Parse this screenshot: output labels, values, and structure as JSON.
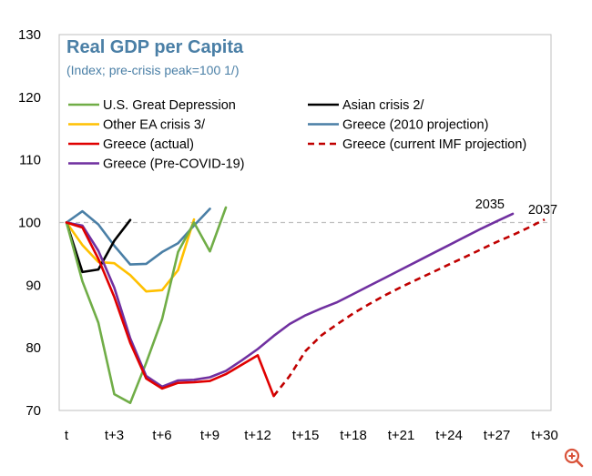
{
  "chart_data": {
    "type": "line",
    "title": "Real GDP per Capita",
    "subtitle": "(Index; pre-crisis peak=100 1/)",
    "ylim": [
      70,
      130
    ],
    "yticks": [
      "70",
      "80",
      "90",
      "100",
      "110",
      "120",
      "130"
    ],
    "xlim": [
      0,
      30
    ],
    "xticks": [
      {
        "value": 0,
        "label": "t"
      },
      {
        "value": 3,
        "label": "t+3"
      },
      {
        "value": 6,
        "label": "t+6"
      },
      {
        "value": 9,
        "label": "t+9"
      },
      {
        "value": 12,
        "label": "t+12"
      },
      {
        "value": 15,
        "label": "t+15"
      },
      {
        "value": 18,
        "label": "t+18"
      },
      {
        "value": 21,
        "label": "t+21"
      },
      {
        "value": 24,
        "label": "t+24"
      },
      {
        "value": 27,
        "label": "t+27"
      },
      {
        "value": 30,
        "label": "t+30"
      }
    ],
    "reference_line": {
      "y": 100,
      "color": "#bfbfbf",
      "dashed": true
    },
    "series": [
      {
        "name": "U.S. Great Depression",
        "color": "#70ad47",
        "dashed": false,
        "x": [
          0,
          1,
          2,
          3,
          4,
          5,
          6,
          7,
          8,
          9,
          10
        ],
        "y": [
          100,
          90.6,
          84.0,
          72.6,
          71.2,
          77.6,
          84.6,
          95.3,
          100.0,
          95.4,
          102.4
        ]
      },
      {
        "name": "Asian crisis 2/",
        "color": "#000000",
        "dashed": false,
        "x": [
          0,
          1,
          2,
          3,
          4
        ],
        "y": [
          100,
          92.1,
          92.5,
          97.1,
          100.4
        ]
      },
      {
        "name": "Other EA crisis 3/",
        "color": "#ffc000",
        "dashed": false,
        "x": [
          0,
          1,
          2,
          3,
          4,
          5,
          6,
          7,
          8
        ],
        "y": [
          100,
          96.4,
          93.7,
          93.5,
          91.6,
          89.0,
          89.2,
          92.4,
          100.5
        ]
      },
      {
        "name": "Greece (2010 projection)",
        "color": "#4a7fa6",
        "dashed": false,
        "x": [
          0,
          1,
          2,
          3,
          4,
          5,
          6,
          7,
          8,
          9
        ],
        "y": [
          100,
          101.8,
          99.7,
          96.3,
          93.3,
          93.4,
          95.3,
          96.7,
          99.5,
          102.2
        ]
      },
      {
        "name": "Greece (actual)",
        "color": "#e00000",
        "dashed": false,
        "x": [
          0,
          1,
          2,
          3,
          4,
          5,
          6,
          7,
          8,
          9,
          10,
          11,
          12,
          13
        ],
        "y": [
          100,
          99.2,
          94.2,
          88.1,
          80.8,
          75.1,
          73.5,
          74.4,
          74.5,
          74.7,
          75.8,
          77.3,
          78.8,
          72.3
        ]
      },
      {
        "name": "Greece (current IMF projection)",
        "color": "#c00000",
        "dashed": true,
        "x": [
          13,
          14,
          15,
          16,
          17,
          18,
          19,
          20,
          21,
          22,
          23,
          24,
          25,
          26,
          27,
          28,
          29,
          30
        ],
        "y": [
          72.3,
          75.5,
          79.5,
          82.0,
          83.8,
          85.5,
          87.0,
          88.4,
          89.7,
          90.9,
          92.1,
          93.3,
          94.5,
          95.7,
          96.9,
          98.0,
          99.2,
          100.5
        ]
      },
      {
        "name": "Greece (Pre-COVID-19)",
        "color": "#7030a0",
        "dashed": false,
        "x": [
          0,
          1,
          2,
          3,
          4,
          5,
          6,
          7,
          8,
          9,
          10,
          11,
          12,
          13,
          14,
          15,
          16,
          17,
          18,
          19,
          20,
          21,
          22,
          23,
          24,
          25,
          26,
          27,
          28
        ],
        "y": [
          100,
          99.5,
          95.5,
          89.6,
          81.5,
          75.5,
          73.8,
          74.8,
          74.9,
          75.3,
          76.3,
          78.0,
          79.8,
          81.9,
          83.8,
          85.2,
          86.3,
          87.3,
          88.6,
          89.9,
          91.2,
          92.5,
          93.8,
          95.1,
          96.4,
          97.7,
          99.0,
          100.2,
          101.4
        ]
      }
    ],
    "legend": {
      "placement": "top-left, inside plot, two columns",
      "order": [
        "U.S. Great Depression",
        "Asian crisis 2/",
        "Other EA crisis 3/",
        "Greece (2010 projection)",
        "Greece (actual)",
        "Greece (current IMF projection)",
        "Greece (Pre-COVID-19)"
      ]
    },
    "annotations": [
      {
        "text": "2035",
        "x": 27.6,
        "y": 101.4
      },
      {
        "text": "2037",
        "x": 30.0,
        "y": 100.5
      }
    ]
  },
  "zoom_icon": "zoom-in-icon"
}
